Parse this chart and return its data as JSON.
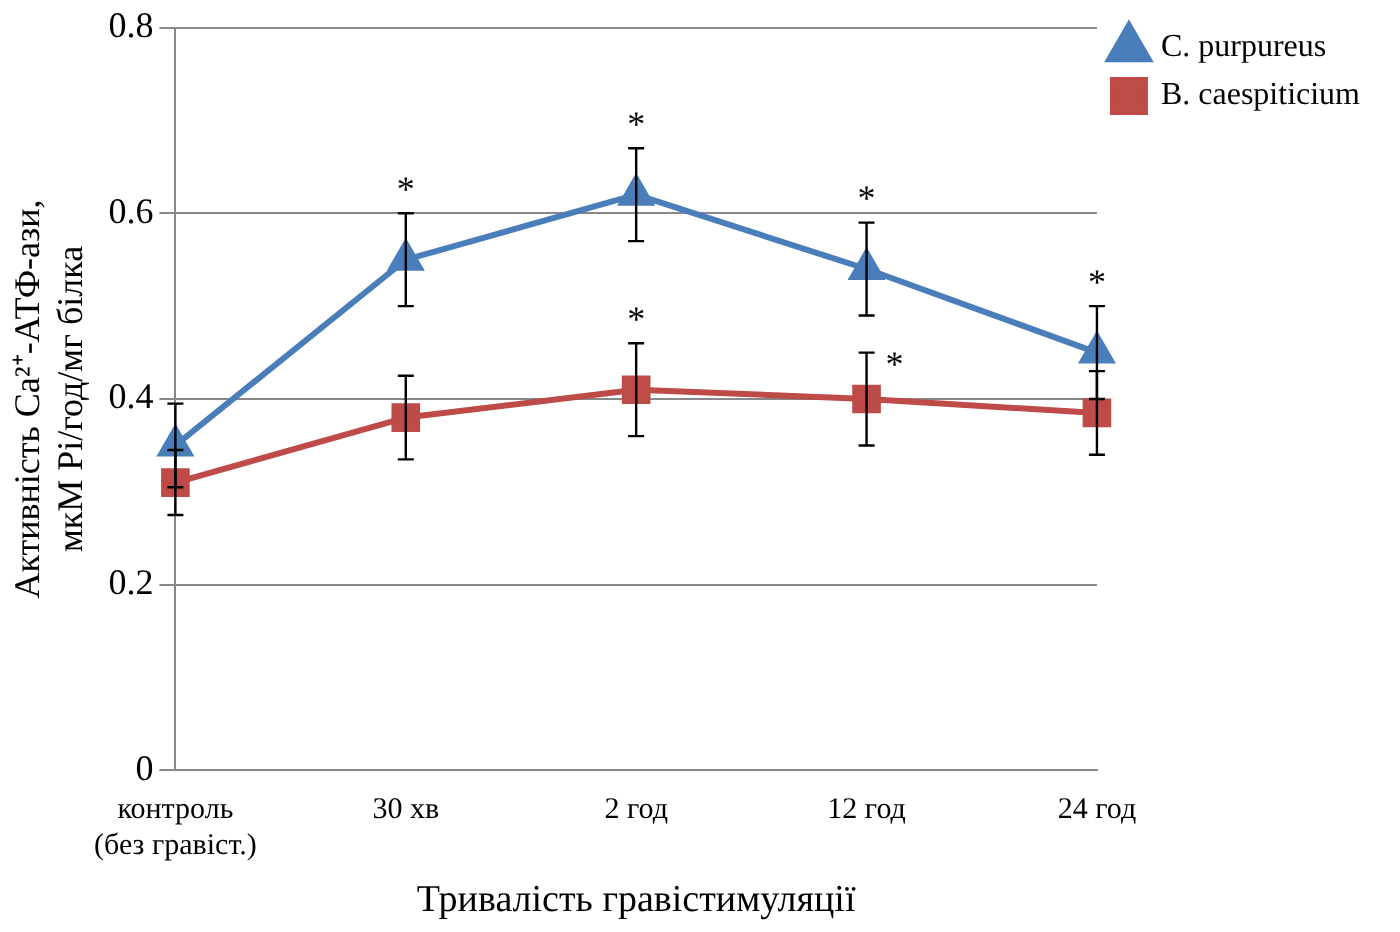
{
  "chart_data": {
    "type": "line",
    "xlabel": "Тривалість гравістимуляції",
    "ylabel": "Активність Ca²⁺-АТФ-ази, мкМ Pi/год/мг білка",
    "categories": [
      "контроль\n(без гравіст.)",
      "30 хв",
      "2 год",
      "12 год",
      "24 год"
    ],
    "series": [
      {
        "name": "C. purpureus",
        "color": "#4a7ebb",
        "marker": "triangle",
        "values": [
          0.35,
          0.55,
          0.62,
          0.54,
          0.45
        ],
        "errors": [
          0.045,
          0.05,
          0.05,
          0.05,
          0.05
        ]
      },
      {
        "name": "B. caespiticium",
        "color": "#be4b48",
        "marker": "square",
        "values": [
          0.31,
          0.38,
          0.41,
          0.4,
          0.385
        ],
        "errors": [
          0.035,
          0.045,
          0.05,
          0.05,
          0.045
        ]
      }
    ],
    "ylim": [
      0,
      0.8
    ],
    "yticks": [
      0,
      0.2,
      0.4,
      0.6,
      0.8
    ],
    "grid": "y",
    "legend": "top right",
    "annotations": [
      {
        "text": "*",
        "x": "30 хв",
        "y": 0.55
      },
      {
        "text": "*",
        "x": "2 год",
        "y": 0.62
      },
      {
        "text": "*",
        "x": "12 год",
        "y": 0.54
      },
      {
        "text": "*",
        "x": "24 год",
        "y": 0.45
      },
      {
        "text": "*",
        "x": "2 год",
        "y": 0.41
      },
      {
        "text": "*",
        "x": "12 год",
        "y": 0.4
      }
    ]
  }
}
